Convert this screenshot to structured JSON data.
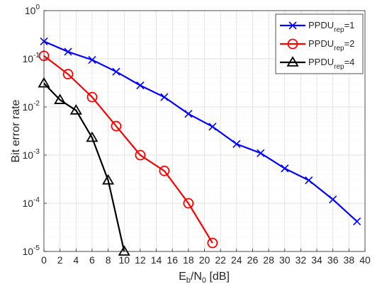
{
  "chart_data": {
    "type": "line",
    "xlabel": "E_b/N_0 [dB]",
    "ylabel": "Bit error rate",
    "xlim": [
      0,
      40
    ],
    "ylim": [
      1e-05,
      1
    ],
    "yscale": "log",
    "grid": true,
    "minor_grid": true,
    "legend_position": "top-right",
    "x_ticks": [
      0,
      2,
      4,
      6,
      8,
      10,
      12,
      14,
      16,
      18,
      20,
      22,
      24,
      26,
      28,
      30,
      32,
      34,
      36,
      38,
      40
    ],
    "y_ticks": [
      0,
      -1,
      -2,
      -3,
      -4,
      -5
    ],
    "series": [
      {
        "legend_base": "PPDU",
        "legend_sub": "rep",
        "legend_suffix": "=1",
        "color": "#0000ff",
        "marker": "x",
        "x": [
          0,
          3,
          6,
          9,
          12,
          15,
          18,
          21,
          24,
          27,
          30,
          33,
          36,
          39
        ],
        "y": [
          0.23,
          0.14,
          0.095,
          0.054,
          0.028,
          0.016,
          0.0072,
          0.0039,
          0.0017,
          0.0011,
          0.00053,
          0.0003,
          0.00012,
          4.2e-05
        ]
      },
      {
        "legend_base": "PPDU",
        "legend_sub": "rep",
        "legend_suffix": "=2",
        "color": "#ff0000",
        "marker": "o",
        "x": [
          0,
          3,
          6,
          9,
          12,
          15,
          18,
          21
        ],
        "y": [
          0.115,
          0.048,
          0.016,
          0.004,
          0.001,
          0.00047,
          0.0001,
          1.5e-05
        ]
      },
      {
        "legend_base": "PPDU",
        "legend_sub": "rep",
        "legend_suffix": "=4",
        "color": "#000000",
        "marker": "triangle",
        "x": [
          0,
          2,
          4,
          6,
          8,
          10
        ],
        "y": [
          0.031,
          0.014,
          0.0085,
          0.0023,
          0.0003,
          1e-05
        ]
      }
    ]
  }
}
